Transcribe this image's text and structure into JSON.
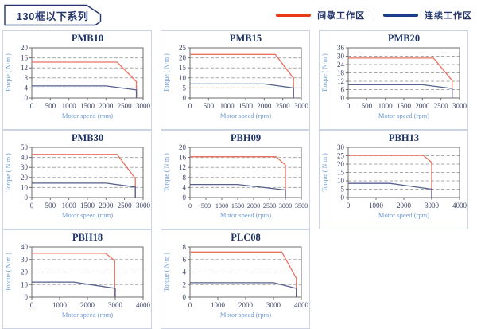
{
  "header": {
    "title": "130框以下系列",
    "legend": {
      "intermittent": {
        "label": "间歇工作区",
        "color": "#e8391d"
      },
      "continuous": {
        "label": "连续工作区",
        "color": "#1c3c8c"
      },
      "separator": "|"
    }
  },
  "colors": {
    "chart_red": "#ec7160",
    "chart_blue": "#56618e",
    "gridline": "#a9a9a9",
    "plot_border": "#6e6e6e",
    "tick_text": "#3c4466",
    "chart_title": "#1f3566",
    "axis_label": "#6f9bd2"
  },
  "axis_labels": {
    "x": "Motor speed (rpm)",
    "y": "Torque ( N·m )"
  },
  "chart_data": [
    {
      "title": "PMB10",
      "type": "line",
      "xlabel": "Motor speed (rpm)",
      "ylabel": "Torque ( N·m )",
      "xlim": [
        0,
        3000
      ],
      "x_step": 500,
      "ylim": [
        0,
        20
      ],
      "y_step": 4,
      "grid": "horizontal-dashed",
      "legend_position": "none",
      "series": [
        {
          "name": "间歇工作区",
          "color_key": "red",
          "points": [
            [
              0,
              14.3
            ],
            [
              2300,
              14.3
            ],
            [
              2820,
              6.5
            ],
            [
              2820,
              0
            ]
          ]
        },
        {
          "name": "连续工作区",
          "color_key": "blue",
          "points": [
            [
              0,
              4.8
            ],
            [
              2000,
              4.8
            ],
            [
              2820,
              3.2
            ],
            [
              2820,
              0
            ]
          ]
        }
      ]
    },
    {
      "title": "PMB15",
      "type": "line",
      "xlabel": "Motor speed (rpm)",
      "ylabel": "Torque ( N·m )",
      "xlim": [
        0,
        3000
      ],
      "x_step": 500,
      "ylim": [
        0,
        25
      ],
      "y_step": 5,
      "grid": "horizontal-dashed",
      "legend_position": "none",
      "series": [
        {
          "name": "间歇工作区",
          "color_key": "red",
          "points": [
            [
              0,
              21.7
            ],
            [
              2300,
              21.7
            ],
            [
              2790,
              9.8
            ],
            [
              2790,
              0
            ]
          ]
        },
        {
          "name": "连续工作区",
          "color_key": "blue",
          "points": [
            [
              0,
              7
            ],
            [
              2000,
              7
            ],
            [
              2790,
              5
            ],
            [
              2790,
              0
            ]
          ]
        }
      ]
    },
    {
      "title": "PMB20",
      "type": "line",
      "xlabel": "Motor speed (rpm)",
      "ylabel": "Torque ( N·m )",
      "xlim": [
        0,
        3000
      ],
      "x_step": 500,
      "ylim": [
        0,
        36
      ],
      "y_step": 6,
      "grid": "horizontal-dashed",
      "legend_position": "none",
      "series": [
        {
          "name": "间歇工作区",
          "color_key": "red",
          "points": [
            [
              0,
              28.6
            ],
            [
              2300,
              28.6
            ],
            [
              2800,
              12.5
            ],
            [
              2800,
              0
            ]
          ]
        },
        {
          "name": "连续工作区",
          "color_key": "blue",
          "points": [
            [
              0,
              9.5
            ],
            [
              2000,
              9.5
            ],
            [
              2800,
              6.8
            ],
            [
              2800,
              0
            ]
          ]
        }
      ]
    },
    {
      "title": "PMB30",
      "type": "line",
      "xlabel": "Motor speed (rpm)",
      "ylabel": "Torque ( N·m )",
      "xlim": [
        0,
        3000
      ],
      "x_step": 500,
      "ylim": [
        0,
        50
      ],
      "y_step": 10,
      "grid": "horizontal-dashed",
      "legend_position": "none",
      "series": [
        {
          "name": "间歇工作区",
          "color_key": "red",
          "points": [
            [
              0,
              43
            ],
            [
              2300,
              43
            ],
            [
              2790,
              19
            ],
            [
              2790,
              0
            ]
          ]
        },
        {
          "name": "连续工作区",
          "color_key": "blue",
          "points": [
            [
              0,
              14.4
            ],
            [
              2000,
              14.4
            ],
            [
              2790,
              10.5
            ],
            [
              2790,
              0
            ]
          ]
        }
      ]
    },
    {
      "title": "PBH09",
      "type": "line",
      "xlabel": "Motor speed (rpm)",
      "ylabel": "Torque ( N·m )",
      "xlim": [
        0,
        3500
      ],
      "x_step": 500,
      "ylim": [
        0,
        20
      ],
      "y_step": 4,
      "grid": "horizontal-dashed",
      "legend_position": "none",
      "series": [
        {
          "name": "间歇工作区",
          "color_key": "red",
          "points": [
            [
              0,
              16.3
            ],
            [
              2700,
              16.3
            ],
            [
              3000,
              13
            ],
            [
              3000,
              0
            ]
          ]
        },
        {
          "name": "连续工作区",
          "color_key": "blue",
          "points": [
            [
              0,
              5.2
            ],
            [
              1500,
              5.2
            ],
            [
              3000,
              3
            ],
            [
              3000,
              0
            ]
          ]
        }
      ]
    },
    {
      "title": "PBH13",
      "type": "line",
      "xlabel": "Motor speed (rpm)",
      "ylabel": "Torque ( N·m )",
      "xlim": [
        0,
        4000
      ],
      "x_step": 1000,
      "ylim": [
        0,
        30
      ],
      "y_step": 5,
      "grid": "horizontal-dashed",
      "legend_position": "none",
      "series": [
        {
          "name": "间歇工作区",
          "color_key": "red",
          "points": [
            [
              0,
              25.2
            ],
            [
              2700,
              25.2
            ],
            [
              3000,
              21
            ],
            [
              3000,
              0
            ]
          ]
        },
        {
          "name": "连续工作区",
          "color_key": "blue",
          "points": [
            [
              0,
              8.5
            ],
            [
              1500,
              8.5
            ],
            [
              3000,
              5
            ],
            [
              3000,
              0
            ]
          ]
        }
      ]
    },
    {
      "title": "PBH18",
      "type": "line",
      "xlabel": "Motor speed (rpm)",
      "ylabel": "Torque ( N·m )",
      "xlim": [
        0,
        4000
      ],
      "x_step": 1000,
      "ylim": [
        0,
        40
      ],
      "y_step": 10,
      "grid": "horizontal-dashed",
      "legend_position": "none",
      "series": [
        {
          "name": "间歇工作区",
          "color_key": "red",
          "points": [
            [
              0,
              35
            ],
            [
              2650,
              35
            ],
            [
              2980,
              29
            ],
            [
              2980,
              0
            ]
          ]
        },
        {
          "name": "连续工作区",
          "color_key": "blue",
          "points": [
            [
              0,
              12
            ],
            [
              1500,
              12
            ],
            [
              3000,
              7
            ],
            [
              3000,
              0
            ]
          ]
        }
      ]
    },
    {
      "title": "PLC08",
      "type": "line",
      "xlabel": "Motor speed (rpm)",
      "ylabel": "Torque ( N·m )",
      "xlim": [
        0,
        4000
      ],
      "x_step": 1000,
      "ylim": [
        0,
        8
      ],
      "y_step": 2,
      "grid": "horizontal-dashed",
      "legend_position": "none",
      "series": [
        {
          "name": "间歇工作区",
          "color_key": "red",
          "points": [
            [
              0,
              7.2
            ],
            [
              3300,
              7.2
            ],
            [
              3820,
              3
            ],
            [
              3820,
              0
            ]
          ]
        },
        {
          "name": "连续工作区",
          "color_key": "blue",
          "points": [
            [
              0,
              2.3
            ],
            [
              3000,
              2.3
            ],
            [
              3820,
              1.4
            ],
            [
              3820,
              0
            ]
          ]
        }
      ]
    }
  ]
}
